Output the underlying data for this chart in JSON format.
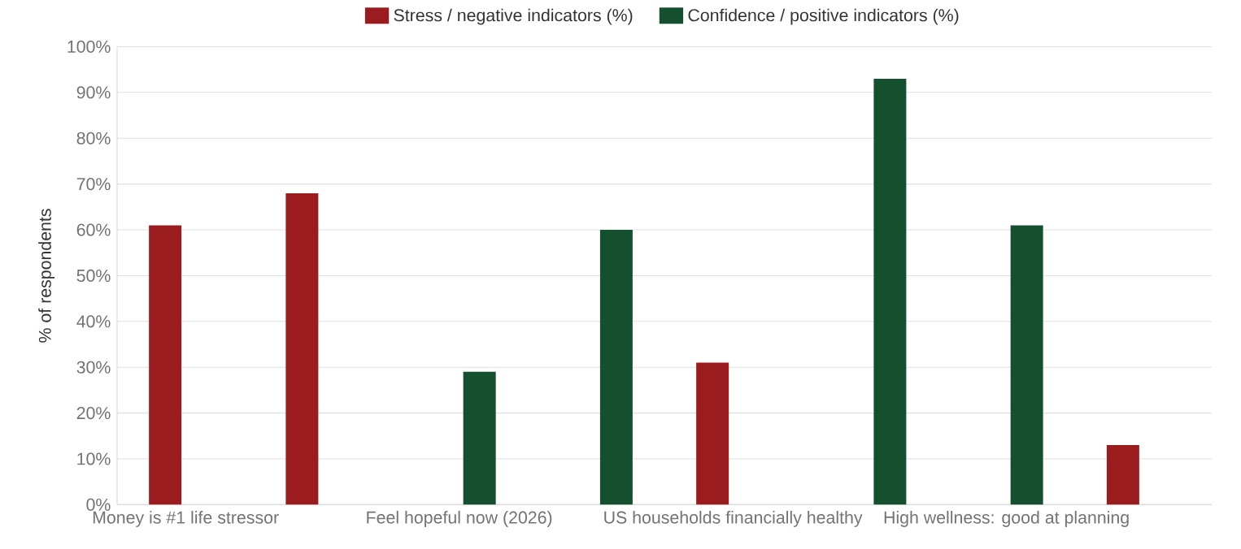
{
  "chart_data": {
    "type": "bar",
    "categories": [
      "Money is #1 life stressor",
      null,
      "Feel hopeful now (2026)",
      null,
      "US households financially healthy",
      null,
      "High wellness: good at planning",
      null
    ],
    "series": [
      {
        "name": "Stress / negative indicators (%)",
        "color": "#9b1c1f",
        "values": [
          61,
          68,
          null,
          null,
          31,
          null,
          null,
          13
        ]
      },
      {
        "name": "Confidence / positive indicators (%)",
        "color": "#14502e",
        "values": [
          null,
          null,
          29,
          60,
          null,
          93,
          61,
          null
        ]
      }
    ],
    "ylabel": "% of respondents",
    "ylim": [
      0,
      100
    ],
    "yticks": [
      {
        "value": 0,
        "label": "0%"
      },
      {
        "value": 10,
        "label": "10%"
      },
      {
        "value": 20,
        "label": "20%"
      },
      {
        "value": 30,
        "label": "30%"
      },
      {
        "value": 40,
        "label": "40%"
      },
      {
        "value": 50,
        "label": "50%"
      },
      {
        "value": 60,
        "label": "60%"
      },
      {
        "value": 70,
        "label": "70%"
      },
      {
        "value": 80,
        "label": "80%"
      },
      {
        "value": 90,
        "label": "90%"
      },
      {
        "value": 100,
        "label": "100%"
      }
    ],
    "grid": "y",
    "legend": "top"
  }
}
